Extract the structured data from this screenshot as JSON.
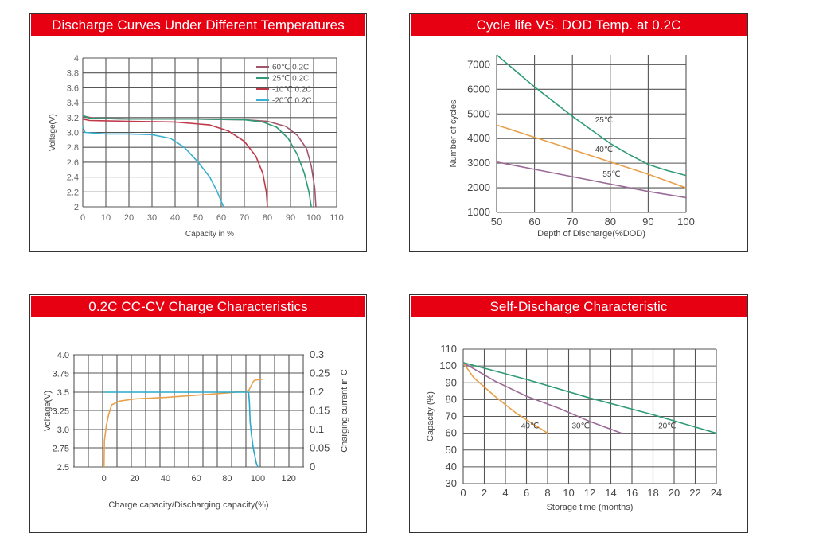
{
  "charts": [
    {
      "header": "Discharge Curves Under Different Temperatures"
    },
    {
      "header": "Cycle life VS. DOD Temp. at 0.2C"
    },
    {
      "header": "0.2C CC-CV Charge Characteristics"
    },
    {
      "header": "Self-Discharge Characteristic"
    }
  ],
  "chart_data": [
    {
      "type": "line",
      "title": "Discharge Curves Under Different Temperatures",
      "xlabel": "Capacity in %",
      "ylabel": "Voltage(V)",
      "xlim": [
        0,
        110
      ],
      "ylim": [
        2,
        4
      ],
      "xticks": [
        0,
        10,
        20,
        30,
        40,
        50,
        60,
        70,
        80,
        90,
        100,
        110
      ],
      "yticks": [
        2,
        2.2,
        2.4,
        2.6,
        2.8,
        3.0,
        3.2,
        3.4,
        3.6,
        3.8,
        4
      ],
      "xtick_labels": [
        "0",
        "10",
        "20",
        "30",
        "40",
        "50",
        "60",
        "70",
        "80",
        "90",
        "100",
        "110"
      ],
      "ytick_labels": [
        "2",
        "2.2",
        "2.4",
        "2.6",
        "2.8",
        "3.0",
        "3.2",
        "3.4",
        "3.6",
        "3.8",
        "4"
      ],
      "legend": "top-right",
      "grid": true,
      "series": [
        {
          "name": "60℃  0.2C",
          "color": "#a0566b",
          "values": [
            [
              0,
              3.22
            ],
            [
              5,
              3.19
            ],
            [
              20,
              3.18
            ],
            [
              50,
              3.18
            ],
            [
              70,
              3.17
            ],
            [
              80,
              3.15
            ],
            [
              88,
              3.08
            ],
            [
              93,
              2.96
            ],
            [
              97,
              2.78
            ],
            [
              99,
              2.55
            ],
            [
              100.5,
              2.25
            ],
            [
              101,
              2.0
            ]
          ]
        },
        {
          "name": "25℃  0.2C",
          "color": "#2e9b74",
          "values": [
            [
              0,
              3.23
            ],
            [
              3,
              3.19
            ],
            [
              20,
              3.18
            ],
            [
              50,
              3.18
            ],
            [
              70,
              3.17
            ],
            [
              78,
              3.14
            ],
            [
              84,
              3.07
            ],
            [
              89,
              2.92
            ],
            [
              93,
              2.7
            ],
            [
              96,
              2.45
            ],
            [
              98,
              2.2
            ],
            [
              99,
              2.0
            ]
          ]
        },
        {
          "name": "-10℃  0.2C",
          "color": "#c0394b",
          "values": [
            [
              0,
              3.18
            ],
            [
              3,
              3.16
            ],
            [
              20,
              3.15
            ],
            [
              40,
              3.14
            ],
            [
              55,
              3.1
            ],
            [
              63,
              3.02
            ],
            [
              70,
              2.88
            ],
            [
              75,
              2.68
            ],
            [
              78,
              2.45
            ],
            [
              79.5,
              2.2
            ],
            [
              80,
              2.0
            ]
          ]
        },
        {
          "name": "-20℃  0.2C",
          "color": "#3bb0d0",
          "values": [
            [
              0,
              3.08
            ],
            [
              1,
              3.0
            ],
            [
              10,
              2.98
            ],
            [
              20,
              2.98
            ],
            [
              30,
              2.97
            ],
            [
              38,
              2.92
            ],
            [
              44,
              2.8
            ],
            [
              50,
              2.6
            ],
            [
              55,
              2.4
            ],
            [
              58,
              2.22
            ],
            [
              61,
              2.0
            ]
          ]
        }
      ]
    },
    {
      "type": "line",
      "title": "Cycle life VS. DOD Temp. at 0.2C",
      "xlabel": "Depth of Discharge(%DOD)",
      "ylabel": "Number of cycles",
      "xlim": [
        50,
        100
      ],
      "ylim": [
        1000,
        7400
      ],
      "xticks": [
        50,
        60,
        70,
        80,
        90,
        100
      ],
      "yticks": [
        1000,
        2000,
        3000,
        4000,
        5000,
        6000,
        7000
      ],
      "xtick_labels": [
        "50",
        "60",
        "70",
        "80",
        "90",
        "100"
      ],
      "ytick_labels": [
        "1000",
        "2000",
        "3000",
        "4000",
        "5000",
        "6000",
        "7000"
      ],
      "grid": true,
      "series": [
        {
          "name": "25℃",
          "color": "#2e9b74",
          "label_at": [
            76,
            4650
          ],
          "values": [
            [
              50,
              7400
            ],
            [
              55,
              6750
            ],
            [
              60,
              6100
            ],
            [
              65,
              5500
            ],
            [
              70,
              4900
            ],
            [
              75,
              4350
            ],
            [
              80,
              3800
            ],
            [
              85,
              3350
            ],
            [
              90,
              2950
            ],
            [
              95,
              2700
            ],
            [
              100,
              2500
            ]
          ]
        },
        {
          "name": "40℃",
          "color": "#e8a04a",
          "label_at": [
            76,
            3450
          ],
          "values": [
            [
              50,
              4550
            ],
            [
              60,
              4050
            ],
            [
              70,
              3550
            ],
            [
              80,
              3050
            ],
            [
              90,
              2550
            ],
            [
              100,
              2000
            ]
          ]
        },
        {
          "name": "55℃",
          "color": "#9a6a96",
          "label_at": [
            78,
            2450
          ],
          "values": [
            [
              50,
              3050
            ],
            [
              60,
              2750
            ],
            [
              70,
              2450
            ],
            [
              80,
              2150
            ],
            [
              90,
              1850
            ],
            [
              100,
              1600
            ]
          ]
        }
      ]
    },
    {
      "type": "line",
      "title": "0.2C CC-CV Charge Characteristics",
      "xlabel": "Charge capacity/Discharging capacity(%)",
      "ylabel": "Voltage(V)",
      "y2label": "Charging current in C",
      "xlim": [
        -20,
        130
      ],
      "ylim": [
        2.5,
        4.0
      ],
      "y2lim": [
        0,
        0.3
      ],
      "xticks": [
        0,
        20,
        40,
        60,
        80,
        100,
        120
      ],
      "yticks": [
        2.5,
        2.75,
        3.0,
        3.25,
        3.5,
        3.75,
        4.0
      ],
      "y2ticks": [
        0,
        0.05,
        0.1,
        0.15,
        0.2,
        0.25,
        0.3
      ],
      "xtick_labels": [
        "0",
        "20",
        "40",
        "60",
        "80",
        "100",
        "120"
      ],
      "ytick_labels": [
        "2.5",
        "2.75",
        "3.0",
        "3.25",
        "3.5",
        "3.75",
        "4.0"
      ],
      "y2tick_labels": [
        "0",
        "0.05",
        "0.1",
        "0.15",
        "0.2",
        "0.25",
        "0.3"
      ],
      "grid": true,
      "series": [
        {
          "name": "Voltage",
          "axis": "left",
          "color": "#e8a04a",
          "values": [
            [
              0,
              2.5
            ],
            [
              0.3,
              2.85
            ],
            [
              1.5,
              3.05
            ],
            [
              3,
              3.2
            ],
            [
              5,
              3.33
            ],
            [
              10,
              3.38
            ],
            [
              20,
              3.41
            ],
            [
              40,
              3.43
            ],
            [
              60,
              3.46
            ],
            [
              80,
              3.49
            ],
            [
              90,
              3.51
            ],
            [
              94,
              3.52
            ],
            [
              96,
              3.6
            ],
            [
              97,
              3.64
            ],
            [
              98,
              3.66
            ],
            [
              102,
              3.67
            ],
            [
              103,
              3.67
            ]
          ]
        },
        {
          "name": "Current",
          "axis": "right",
          "color": "#29a8c9",
          "values": [
            [
              0,
              0.2
            ],
            [
              94,
              0.2
            ],
            [
              94.5,
              0.17
            ],
            [
              95,
              0.12
            ],
            [
              96,
              0.08
            ],
            [
              97,
              0.05
            ],
            [
              99,
              0.01
            ],
            [
              100,
              0.0
            ]
          ]
        }
      ]
    },
    {
      "type": "line",
      "title": "Self-Discharge Characteristic",
      "xlabel": "Storage time (months)",
      "ylabel": "Capacity (%)",
      "xlim": [
        0,
        24
      ],
      "ylim": [
        30,
        110
      ],
      "xticks": [
        0,
        2,
        4,
        6,
        8,
        10,
        12,
        14,
        16,
        18,
        20,
        22,
        24
      ],
      "yticks": [
        30,
        40,
        50,
        60,
        70,
        80,
        90,
        100,
        110
      ],
      "xtick_labels": [
        "0",
        "2",
        "4",
        "6",
        "8",
        "10",
        "12",
        "14",
        "16",
        "18",
        "20",
        "22",
        "24"
      ],
      "ytick_labels": [
        "30",
        "40",
        "50",
        "60",
        "70",
        "80",
        "90",
        "100",
        "110"
      ],
      "grid": true,
      "series": [
        {
          "name": "40℃",
          "color": "#e8a04a",
          "label_at": [
            5.5,
            63
          ],
          "values": [
            [
              0,
              102
            ],
            [
              1,
              93
            ],
            [
              3,
              82
            ],
            [
              5,
              72
            ],
            [
              8,
              60
            ]
          ]
        },
        {
          "name": "30℃",
          "color": "#9a6a96",
          "label_at": [
            10.3,
            63
          ],
          "values": [
            [
              0,
              102
            ],
            [
              3,
              91
            ],
            [
              6,
              82
            ],
            [
              9,
              75
            ],
            [
              12,
              67
            ],
            [
              15,
              60
            ]
          ]
        },
        {
          "name": "20℃",
          "color": "#2e9b74",
          "label_at": [
            18.5,
            63
          ],
          "values": [
            [
              0,
              102
            ],
            [
              6,
              92
            ],
            [
              12,
              81
            ],
            [
              18,
              71
            ],
            [
              24,
              60
            ]
          ]
        }
      ]
    }
  ]
}
